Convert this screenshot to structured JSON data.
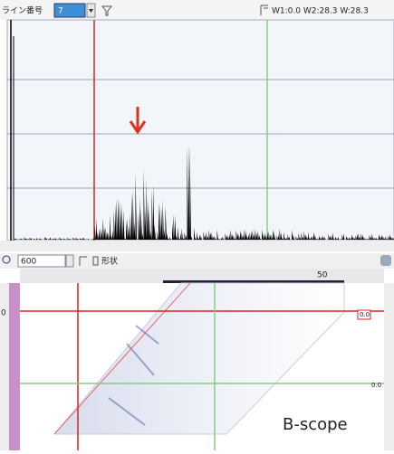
{
  "toolbar": {
    "line_label": "ライン番号",
    "line_value": "7",
    "window_readout": "W1:0.0 W2:28.3 W:28.3"
  },
  "bscan_toolbar": {
    "zoom": "600",
    "shape_label": "形状"
  },
  "bscan": {
    "ruler_label": "50",
    "depth_label": "0",
    "cursor_labels": [
      "0.0",
      "0.0"
    ],
    "caption": "B-scope"
  }
}
